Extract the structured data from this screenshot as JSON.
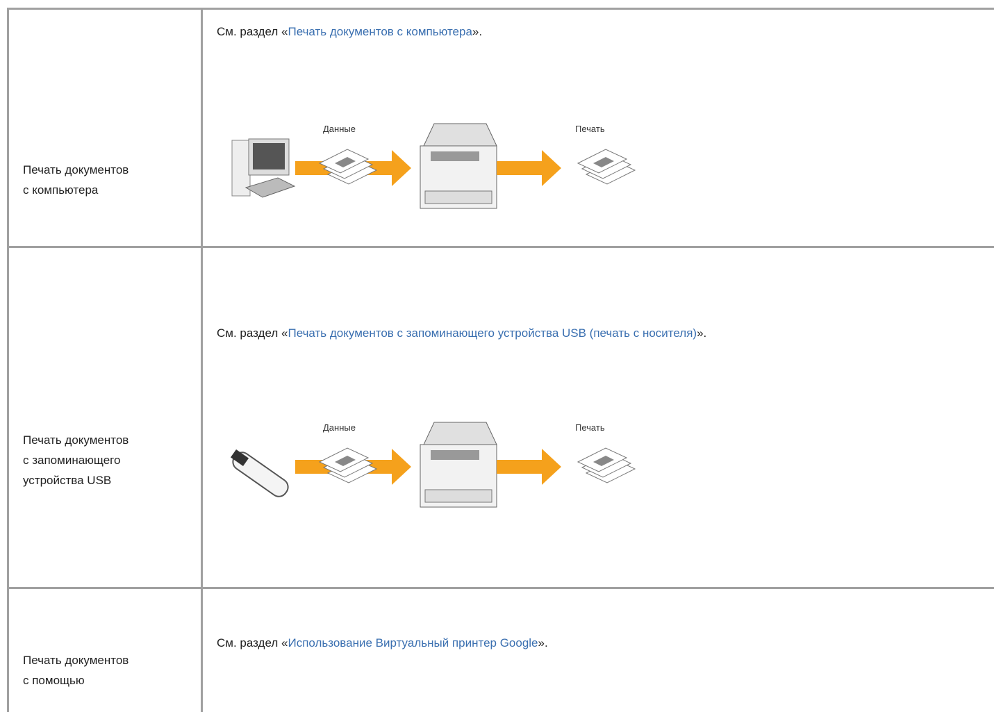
{
  "rows": [
    {
      "label_lines": [
        "Печать документов",
        "с компьютера"
      ],
      "reference": {
        "prefix": "См. раздел «",
        "link": "Печать документов с компьютера",
        "suffix": "»."
      },
      "diagram": {
        "source_label": "Данные",
        "output_label": "Печать"
      }
    },
    {
      "label_lines": [
        "Печать документов",
        "с запоминающего",
        "устройства USB"
      ],
      "reference": {
        "prefix": "См. раздел «",
        "link": "Печать документов с запоминающего устройства USB (печать с носителя)",
        "suffix": "»."
      },
      "diagram": {
        "source_label": "Данные",
        "output_label": "Печать"
      }
    },
    {
      "label_lines": [
        "Печать документов",
        "с помощью"
      ],
      "reference": {
        "prefix": "См. раздел «",
        "link": "Использование Виртуальный принтер Google",
        "suffix": "»."
      }
    }
  ]
}
